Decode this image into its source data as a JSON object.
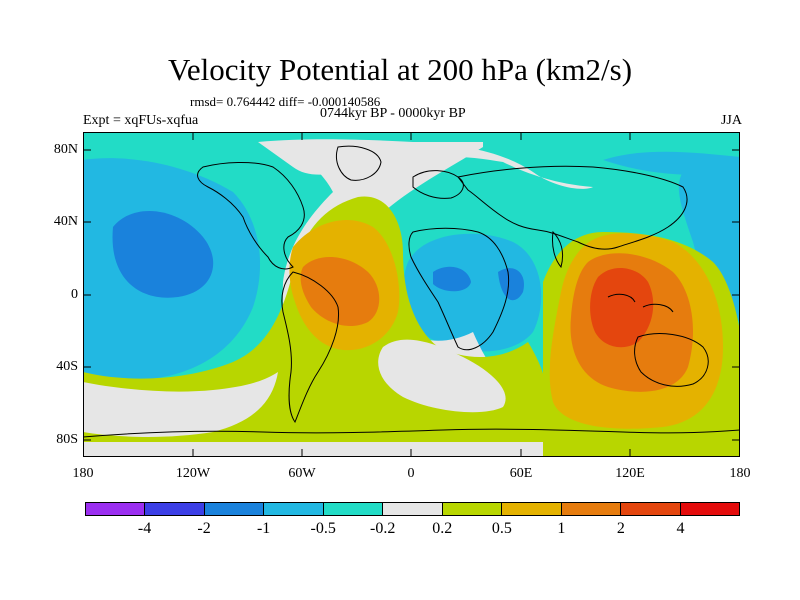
{
  "title": "Velocity Potential at 200 hPa (km2/s)",
  "stats": "rmsd= 0.764442 diff= -0.000140586",
  "period": "0744kyr BP - 0000kyr BP",
  "experiment": "Expt = xqFUs-xqfua",
  "season": "JJA",
  "lat_labels": [
    "80N",
    "40N",
    "0",
    "40S",
    "80S"
  ],
  "lon_labels": [
    "180",
    "120W",
    "60W",
    "0",
    "60E",
    "120E",
    "180"
  ],
  "colorbar": {
    "colors": [
      "#9b2ff0",
      "#3c3fe6",
      "#1a82dc",
      "#22b8e2",
      "#22dcc6",
      "#e6e6e6",
      "#b8d600",
      "#e4b200",
      "#e67c0e",
      "#e4460e",
      "#e40c0c"
    ],
    "labels": [
      "-4",
      "-2",
      "-1",
      "-0.5",
      "-0.2",
      "0.2",
      "0.5",
      "1",
      "2",
      "4"
    ]
  },
  "palette": {
    "deep_blue": "#1a82dc",
    "light_blue": "#22b8e2",
    "cyan": "#22dcc6",
    "neutral": "#e6e6e6",
    "yellow_green": "#b8d600",
    "gold": "#e4b200",
    "orange": "#e67c0e",
    "red_orange": "#e4460e"
  }
}
